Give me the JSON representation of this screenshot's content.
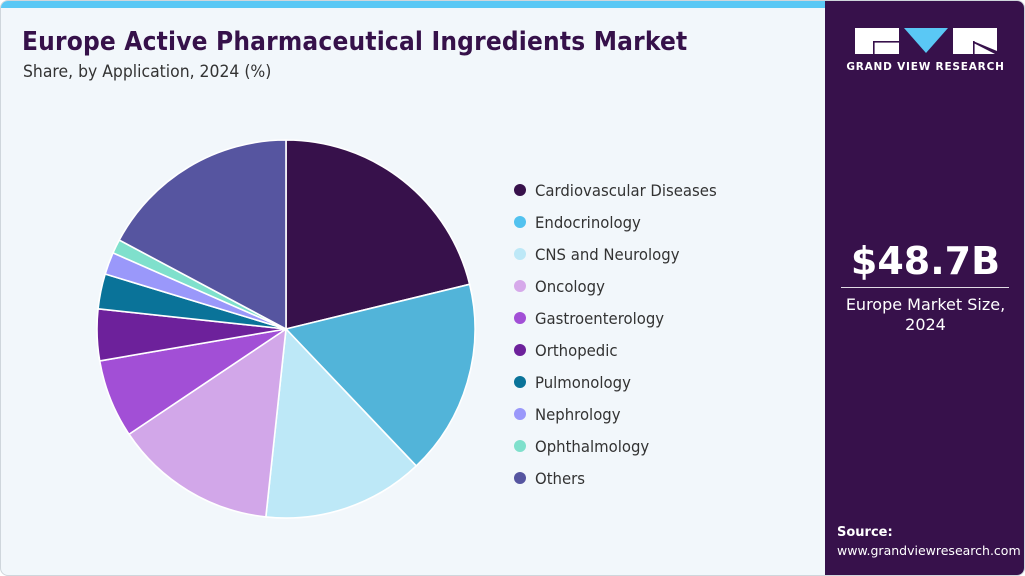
{
  "header": {
    "title": "Europe Active Pharmaceutical Ingredients Market",
    "subtitle": "Share, by Application, 2024 (%)"
  },
  "colors": {
    "accent_bar": "#5ac8f5",
    "title": "#36114a",
    "sidebar_bg": "#37114b",
    "background": "#f2f7fb"
  },
  "sidebar": {
    "logo_icon": "grand-view-research-logo",
    "logo_text": "GRAND VIEW RESEARCH",
    "market_value": "$48.7B",
    "market_label_line1": "Europe Market Size,",
    "market_label_line2": "2024",
    "source_label": "Source:",
    "source_url": "www.grandviewresearch.com"
  },
  "chart_data": {
    "type": "pie",
    "title": "Europe Active Pharmaceutical Ingredients Market",
    "subtitle": "Share, by Application, 2024 (%)",
    "categories": [
      "Cardiovascular Diseases",
      "Endocrinology",
      "CNS and Neurology",
      "Oncology",
      "Gastroenterology",
      "Orthopedic",
      "Pulmonology",
      "Nephrology",
      "Ophthalmology",
      "Others"
    ],
    "values": [
      21.2,
      16.7,
      13.8,
      13.9,
      6.7,
      4.4,
      3.0,
      1.9,
      1.2,
      17.2
    ],
    "colors": [
      "#37114b",
      "#52b4d9",
      "#bde8f7",
      "#d2a7e9",
      "#a24fd6",
      "#6d219b",
      "#0a7399",
      "#9a98fa",
      "#7fe0cc",
      "#5655a0"
    ],
    "legend_position": "right",
    "start_angle": "12 o'clock, clockwise",
    "grid": false
  },
  "legend": {
    "items": [
      {
        "label": "Cardiovascular Diseases",
        "color": "#37114b"
      },
      {
        "label": "Endocrinology",
        "color": "#52c2ef"
      },
      {
        "label": "CNS and Neurology",
        "color": "#bde8f7"
      },
      {
        "label": "Oncology",
        "color": "#d6a9ea"
      },
      {
        "label": "Gastroenterology",
        "color": "#a24fd6"
      },
      {
        "label": "Orthopedic",
        "color": "#6d219b"
      },
      {
        "label": "Pulmonology",
        "color": "#0a7399"
      },
      {
        "label": "Nephrology",
        "color": "#9a98fa"
      },
      {
        "label": "Ophthalmology",
        "color": "#7fe0cc"
      },
      {
        "label": "Others",
        "color": "#5655a0"
      }
    ]
  }
}
